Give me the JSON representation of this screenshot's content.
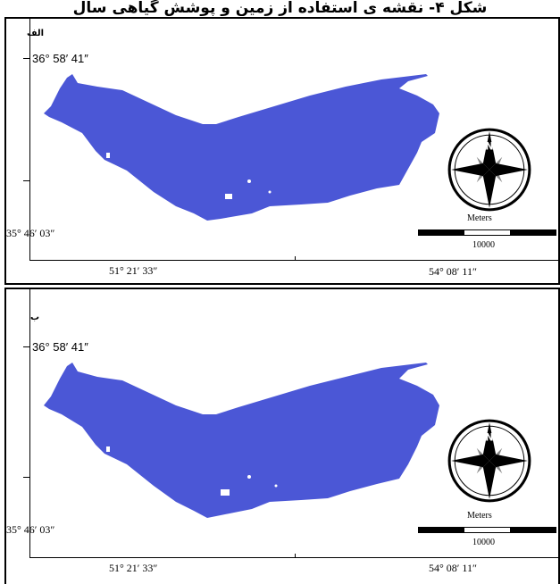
{
  "banner": "شكل ۴- نقشه ی استفاده از زمین و پوشش گیاهی سال",
  "panels": [
    {
      "label": "الف",
      "coords": {
        "lat_top": "36° 58′ 41″",
        "lat_bottom": "35° 46′ 03″",
        "lon_left": "51° 21′ 33″",
        "lon_right": "54° 08′ 11″"
      },
      "scale": {
        "unit": "Meters",
        "value": "10000"
      }
    },
    {
      "label": "ب",
      "coords": {
        "lat_top": "36° 58′ 41″",
        "lat_bottom": "35° 46′ 03″",
        "lon_left": "51° 21′ 33″",
        "lon_right": "54° 08′ 11″"
      },
      "scale": {
        "unit": "Meters",
        "value": "10000"
      }
    }
  ],
  "colors": {
    "region": "#4b57d6",
    "frame": "#000000"
  },
  "icons": [
    "north-arrow-icon"
  ]
}
